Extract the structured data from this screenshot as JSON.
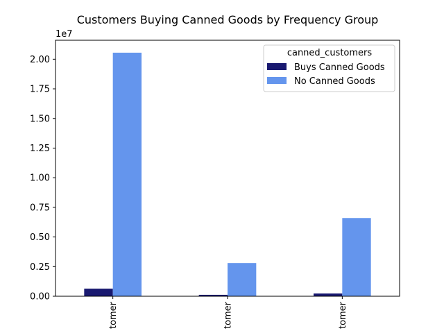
{
  "chart_data": {
    "type": "bar",
    "title": "Customers Buying Canned Goods by Frequency Group",
    "xlabel": "",
    "ylabel": "",
    "y_offset_label": "1e7",
    "categories": [
      "tomer",
      "tomer",
      "tomer"
    ],
    "series": [
      {
        "name": "Buys Canned Goods",
        "color": "#191970",
        "values": [
          640000,
          120000,
          230000
        ]
      },
      {
        "name": "No Canned Goods",
        "color": "#6495ED",
        "values": [
          20550000,
          2800000,
          6600000
        ]
      }
    ],
    "ylim": [
      0,
      21600000
    ],
    "y_ticks": [
      0,
      2500000,
      5000000,
      7500000,
      10000000,
      12500000,
      15000000,
      17500000,
      20000000
    ],
    "y_tick_labels": [
      "0.00",
      "0.25",
      "0.50",
      "0.75",
      "1.00",
      "1.25",
      "1.50",
      "1.75",
      "2.00"
    ],
    "legend": {
      "title": "canned_customers",
      "position": "top-right"
    },
    "grid": false
  }
}
